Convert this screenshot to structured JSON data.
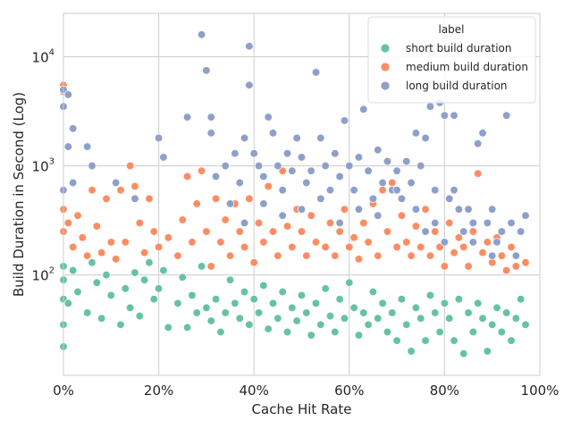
{
  "chart_data": {
    "type": "scatter",
    "title": "",
    "xlabel": "Cache Hit Rate",
    "ylabel": "Build Duration in Second (Log)",
    "xlim": [
      0,
      1
    ],
    "ylim": [
      12,
      25000
    ],
    "yscale": "log",
    "grid": true,
    "x_ticks": [
      {
        "value": 0.0,
        "label": "0%"
      },
      {
        "value": 0.2,
        "label": "20%"
      },
      {
        "value": 0.4,
        "label": "40%"
      },
      {
        "value": 0.6,
        "label": "60%"
      },
      {
        "value": 0.8,
        "label": "80%"
      },
      {
        "value": 1.0,
        "label": "100%"
      }
    ],
    "y_ticks": [
      {
        "value": 100,
        "base": "10",
        "exp": "2"
      },
      {
        "value": 1000,
        "base": "10",
        "exp": "3"
      },
      {
        "value": 10000,
        "base": "10",
        "exp": "4"
      }
    ],
    "legend": {
      "title": "label",
      "placement": "top-right",
      "entries": [
        {
          "name": "short build duration",
          "color": "#66c2a5"
        },
        {
          "name": "medium build duration",
          "color": "#fc8d62"
        },
        {
          "name": "long build duration",
          "color": "#8da0cb"
        }
      ]
    },
    "series": [
      {
        "name": "short build duration",
        "color": "#66c2a5",
        "points": [
          [
            0.0,
            22
          ],
          [
            0.0,
            35
          ],
          [
            0.0,
            60
          ],
          [
            0.0,
            90
          ],
          [
            0.0,
            120
          ],
          [
            0.01,
            55
          ],
          [
            0.02,
            110
          ],
          [
            0.03,
            70
          ],
          [
            0.05,
            45
          ],
          [
            0.06,
            130
          ],
          [
            0.07,
            85
          ],
          [
            0.08,
            40
          ],
          [
            0.09,
            100
          ],
          [
            0.1,
            65
          ],
          [
            0.11,
            140
          ],
          [
            0.12,
            35
          ],
          [
            0.13,
            75
          ],
          [
            0.14,
            50
          ],
          [
            0.15,
            105
          ],
          [
            0.16,
            42
          ],
          [
            0.17,
            90
          ],
          [
            0.18,
            130
          ],
          [
            0.19,
            60
          ],
          [
            0.2,
            75
          ],
          [
            0.21,
            110
          ],
          [
            0.22,
            33
          ],
          [
            0.24,
            55
          ],
          [
            0.25,
            95
          ],
          [
            0.26,
            33
          ],
          [
            0.27,
            65
          ],
          [
            0.28,
            45
          ],
          [
            0.29,
            120
          ],
          [
            0.3,
            50
          ],
          [
            0.31,
            38
          ],
          [
            0.32,
            60
          ],
          [
            0.33,
            30
          ],
          [
            0.34,
            45
          ],
          [
            0.35,
            90
          ],
          [
            0.36,
            55
          ],
          [
            0.37,
            40
          ],
          [
            0.38,
            70
          ],
          [
            0.39,
            35
          ],
          [
            0.4,
            60
          ],
          [
            0.41,
            45
          ],
          [
            0.42,
            80
          ],
          [
            0.43,
            32
          ],
          [
            0.44,
            55
          ],
          [
            0.45,
            40
          ],
          [
            0.46,
            70
          ],
          [
            0.47,
            30
          ],
          [
            0.48,
            50
          ],
          [
            0.49,
            38
          ],
          [
            0.5,
            65
          ],
          [
            0.51,
            45
          ],
          [
            0.52,
            28
          ],
          [
            0.53,
            55
          ],
          [
            0.54,
            35
          ],
          [
            0.55,
            75
          ],
          [
            0.56,
            42
          ],
          [
            0.57,
            30
          ],
          [
            0.58,
            60
          ],
          [
            0.59,
            40
          ],
          [
            0.6,
            85
          ],
          [
            0.61,
            50
          ],
          [
            0.62,
            28
          ],
          [
            0.63,
            45
          ],
          [
            0.64,
            35
          ],
          [
            0.65,
            70
          ],
          [
            0.66,
            40
          ],
          [
            0.67,
            55
          ],
          [
            0.68,
            30
          ],
          [
            0.69,
            45
          ],
          [
            0.7,
            25
          ],
          [
            0.71,
            60
          ],
          [
            0.72,
            35
          ],
          [
            0.73,
            20
          ],
          [
            0.74,
            50
          ],
          [
            0.75,
            40
          ],
          [
            0.76,
            25
          ],
          [
            0.77,
            65
          ],
          [
            0.78,
            45
          ],
          [
            0.79,
            30
          ],
          [
            0.8,
            55
          ],
          [
            0.81,
            40
          ],
          [
            0.82,
            25
          ],
          [
            0.83,
            60
          ],
          [
            0.84,
            19
          ],
          [
            0.85,
            45
          ],
          [
            0.86,
            30
          ],
          [
            0.87,
            55
          ],
          [
            0.88,
            40
          ],
          [
            0.89,
            20
          ],
          [
            0.9,
            35
          ],
          [
            0.91,
            50
          ],
          [
            0.92,
            30
          ],
          [
            0.93,
            45
          ],
          [
            0.94,
            25
          ],
          [
            0.95,
            40
          ],
          [
            0.96,
            60
          ],
          [
            0.97,
            35
          ]
        ]
      },
      {
        "name": "medium build duration",
        "color": "#fc8d62",
        "points": [
          [
            0.0,
            5500
          ],
          [
            0.0,
            4800
          ],
          [
            0.0,
            3500
          ],
          [
            0.0,
            400
          ],
          [
            0.0,
            250
          ],
          [
            0.01,
            300
          ],
          [
            0.02,
            180
          ],
          [
            0.03,
            350
          ],
          [
            0.04,
            220
          ],
          [
            0.05,
            150
          ],
          [
            0.06,
            600
          ],
          [
            0.07,
            280
          ],
          [
            0.08,
            160
          ],
          [
            0.09,
            500
          ],
          [
            0.1,
            200
          ],
          [
            0.11,
            140
          ],
          [
            0.12,
            600
          ],
          [
            0.13,
            200
          ],
          [
            0.14,
            1000
          ],
          [
            0.15,
            650
          ],
          [
            0.16,
            300
          ],
          [
            0.17,
            160
          ],
          [
            0.18,
            500
          ],
          [
            0.19,
            250
          ],
          [
            0.2,
            180
          ],
          [
            0.22,
            220
          ],
          [
            0.24,
            150
          ],
          [
            0.25,
            320
          ],
          [
            0.26,
            800
          ],
          [
            0.27,
            200
          ],
          [
            0.28,
            450
          ],
          [
            0.29,
            900
          ],
          [
            0.3,
            250
          ],
          [
            0.31,
            120
          ],
          [
            0.32,
            500
          ],
          [
            0.33,
            200
          ],
          [
            0.34,
            320
          ],
          [
            0.35,
            150
          ],
          [
            0.36,
            450
          ],
          [
            0.37,
            250
          ],
          [
            0.38,
            180
          ],
          [
            0.39,
            500
          ],
          [
            0.4,
            130
          ],
          [
            0.41,
            300
          ],
          [
            0.42,
            200
          ],
          [
            0.43,
            650
          ],
          [
            0.44,
            250
          ],
          [
            0.45,
            150
          ],
          [
            0.46,
            900
          ],
          [
            0.47,
            280
          ],
          [
            0.48,
            180
          ],
          [
            0.49,
            400
          ],
          [
            0.5,
            250
          ],
          [
            0.51,
            150
          ],
          [
            0.52,
            350
          ],
          [
            0.53,
            200
          ],
          [
            0.54,
            500
          ],
          [
            0.55,
            180
          ],
          [
            0.56,
            300
          ],
          [
            0.57,
            150
          ],
          [
            0.58,
            250
          ],
          [
            0.59,
            400
          ],
          [
            0.6,
            180
          ],
          [
            0.61,
            220
          ],
          [
            0.62,
            140
          ],
          [
            0.63,
            300
          ],
          [
            0.64,
            200
          ],
          [
            0.65,
            450
          ],
          [
            0.66,
            150
          ],
          [
            0.67,
            600
          ],
          [
            0.68,
            250
          ],
          [
            0.69,
            700
          ],
          [
            0.7,
            180
          ],
          [
            0.71,
            350
          ],
          [
            0.72,
            200
          ],
          [
            0.73,
            150
          ],
          [
            0.74,
            280
          ],
          [
            0.75,
            180
          ],
          [
            0.76,
            400
          ],
          [
            0.77,
            150
          ],
          [
            0.78,
            250
          ],
          [
            0.79,
            180
          ],
          [
            0.8,
            120
          ],
          [
            0.81,
            300
          ],
          [
            0.82,
            160
          ],
          [
            0.83,
            220
          ],
          [
            0.84,
            180
          ],
          [
            0.85,
            120
          ],
          [
            0.86,
            250
          ],
          [
            0.87,
            850
          ],
          [
            0.88,
            160
          ],
          [
            0.89,
            200
          ],
          [
            0.9,
            130
          ],
          [
            0.91,
            220
          ],
          [
            0.92,
            150
          ],
          [
            0.93,
            110
          ],
          [
            0.94,
            180
          ],
          [
            0.95,
            120
          ],
          [
            0.96,
            250
          ],
          [
            0.97,
            130
          ]
        ]
      },
      {
        "name": "long build duration",
        "color": "#8da0cb",
        "points": [
          [
            0.0,
            5000
          ],
          [
            0.0,
            3500
          ],
          [
            0.01,
            4500
          ],
          [
            0.01,
            1500
          ],
          [
            0.02,
            2200
          ],
          [
            0.0,
            600
          ],
          [
            0.02,
            700
          ],
          [
            0.05,
            1500
          ],
          [
            0.06,
            1000
          ],
          [
            0.11,
            700
          ],
          [
            0.15,
            500
          ],
          [
            0.2,
            1800
          ],
          [
            0.21,
            1200
          ],
          [
            0.26,
            2800
          ],
          [
            0.29,
            16000
          ],
          [
            0.3,
            7500
          ],
          [
            0.31,
            2800
          ],
          [
            0.31,
            2000
          ],
          [
            0.32,
            800
          ],
          [
            0.34,
            1000
          ],
          [
            0.35,
            450
          ],
          [
            0.36,
            1300
          ],
          [
            0.37,
            700
          ],
          [
            0.38,
            1800
          ],
          [
            0.39,
            12500
          ],
          [
            0.39,
            5500
          ],
          [
            0.4,
            1300
          ],
          [
            0.41,
            1000
          ],
          [
            0.42,
            800
          ],
          [
            0.43,
            2800
          ],
          [
            0.44,
            2000
          ],
          [
            0.45,
            1000
          ],
          [
            0.46,
            600
          ],
          [
            0.47,
            1300
          ],
          [
            0.48,
            900
          ],
          [
            0.49,
            1800
          ],
          [
            0.5,
            1200
          ],
          [
            0.51,
            700
          ],
          [
            0.52,
            900
          ],
          [
            0.53,
            7200
          ],
          [
            0.54,
            1800
          ],
          [
            0.55,
            1000
          ],
          [
            0.56,
            600
          ],
          [
            0.57,
            1300
          ],
          [
            0.58,
            800
          ],
          [
            0.59,
            2600
          ],
          [
            0.6,
            1000
          ],
          [
            0.61,
            600
          ],
          [
            0.62,
            1200
          ],
          [
            0.63,
            3300
          ],
          [
            0.64,
            900
          ],
          [
            0.65,
            500
          ],
          [
            0.66,
            1400
          ],
          [
            0.67,
            700
          ],
          [
            0.68,
            1100
          ],
          [
            0.69,
            600
          ],
          [
            0.7,
            900
          ],
          [
            0.71,
            500
          ],
          [
            0.72,
            1100
          ],
          [
            0.73,
            700
          ],
          [
            0.74,
            2000
          ],
          [
            0.75,
            1000
          ],
          [
            0.76,
            1800
          ],
          [
            0.77,
            3500
          ],
          [
            0.78,
            600
          ],
          [
            0.79,
            3800
          ],
          [
            0.8,
            2900
          ],
          [
            0.81,
            500
          ],
          [
            0.82,
            2900
          ],
          [
            0.83,
            400
          ],
          [
            0.84,
            250
          ],
          [
            0.85,
            400
          ],
          [
            0.86,
            300
          ],
          [
            0.87,
            1600
          ],
          [
            0.88,
            2000
          ],
          [
            0.89,
            300
          ],
          [
            0.9,
            400
          ],
          [
            0.91,
            200
          ],
          [
            0.92,
            250
          ],
          [
            0.93,
            2900
          ],
          [
            0.94,
            300
          ],
          [
            0.95,
            150
          ],
          [
            0.96,
            250
          ],
          [
            0.97,
            350
          ],
          [
            0.82,
            600
          ],
          [
            0.78,
            300
          ],
          [
            0.74,
            400
          ],
          [
            0.7,
            600
          ],
          [
            0.66,
            350
          ],
          [
            0.62,
            400
          ],
          [
            0.58,
            300
          ],
          [
            0.54,
            500
          ],
          [
            0.5,
            400
          ],
          [
            0.46,
            350
          ],
          [
            0.42,
            450
          ],
          [
            0.38,
            300
          ],
          [
            0.86,
            200
          ],
          [
            0.9,
            150
          ],
          [
            0.8,
            200
          ],
          [
            0.76,
            250
          ]
        ]
      }
    ]
  }
}
